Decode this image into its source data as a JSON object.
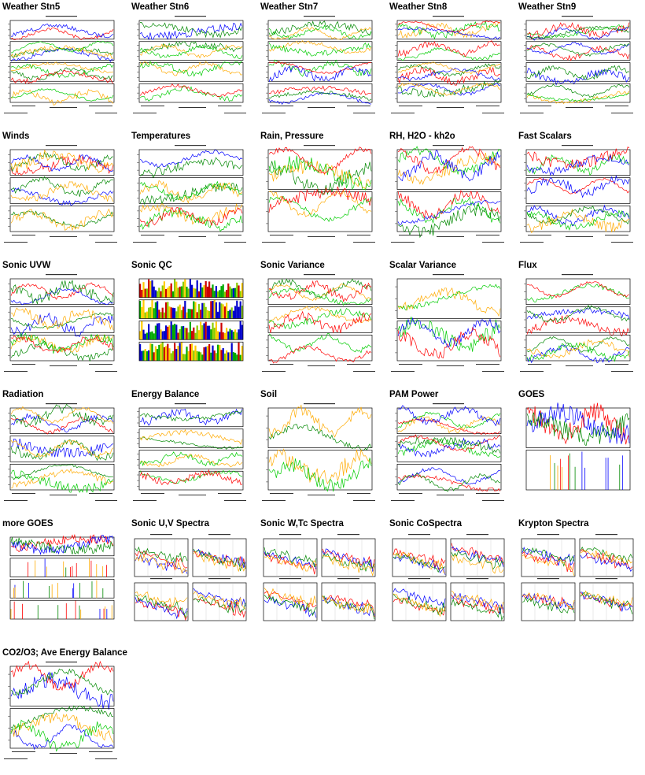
{
  "page": {
    "title": ""
  },
  "thumbnails": [
    {
      "label": "Weather Stn5",
      "kind": "plots",
      "panels": 4
    },
    {
      "label": "Weather Stn6",
      "kind": "plots",
      "panels": 4
    },
    {
      "label": "Weather Stn7",
      "kind": "plots",
      "panels": 4
    },
    {
      "label": "Weather Stn8",
      "kind": "plots",
      "panels": 4
    },
    {
      "label": "Weather Stn9",
      "kind": "plots",
      "panels": 4
    },
    {
      "label": "Winds",
      "kind": "plots",
      "panels": 3
    },
    {
      "label": "Temperatures",
      "kind": "plots",
      "panels": 3
    },
    {
      "label": "Rain, Pressure",
      "kind": "plots",
      "panels": 2
    },
    {
      "label": "RH, H2O - kh2o",
      "kind": "plots",
      "panels": 2
    },
    {
      "label": "Fast Scalars",
      "kind": "plots",
      "panels": 3
    },
    {
      "label": "Sonic UVW",
      "kind": "plots",
      "panels": 3
    },
    {
      "label": "Sonic QC",
      "kind": "qc",
      "panels": 4
    },
    {
      "label": "Sonic Variance",
      "kind": "plots",
      "panels": 3
    },
    {
      "label": "Scalar Variance",
      "kind": "plots",
      "panels": 2
    },
    {
      "label": "Flux",
      "kind": "plots",
      "panels": 3
    },
    {
      "label": "Radiation",
      "kind": "plots",
      "panels": 3
    },
    {
      "label": "Energy Balance",
      "kind": "plots",
      "panels": 4
    },
    {
      "label": "Soil",
      "kind": "plots",
      "panels": 2
    },
    {
      "label": "PAM Power",
      "kind": "plots",
      "panels": 3
    },
    {
      "label": "GOES",
      "kind": "goes",
      "panels": 2
    },
    {
      "label": "more GOES",
      "kind": "goes",
      "panels": 4
    },
    {
      "label": "Sonic U,V Spectra",
      "kind": "spectra",
      "panels": 4
    },
    {
      "label": "Sonic W,Tc Spectra",
      "kind": "spectra",
      "panels": 4
    },
    {
      "label": "Sonic CoSpectra",
      "kind": "spectra",
      "panels": 4
    },
    {
      "label": "Krypton Spectra",
      "kind": "spectra",
      "panels": 4
    },
    {
      "label": "CO2/O3; Ave Energy Balance",
      "kind": "plots",
      "panels": 2
    }
  ],
  "colors": {
    "series": [
      "#ff0000",
      "#0000ff",
      "#008800",
      "#ffaa00",
      "#00cc00",
      "#cc00cc",
      "#000000"
    ],
    "grid": "#bbbbbb"
  },
  "icons": {
    "thumbnail": "plot-thumbnail-icon"
  }
}
